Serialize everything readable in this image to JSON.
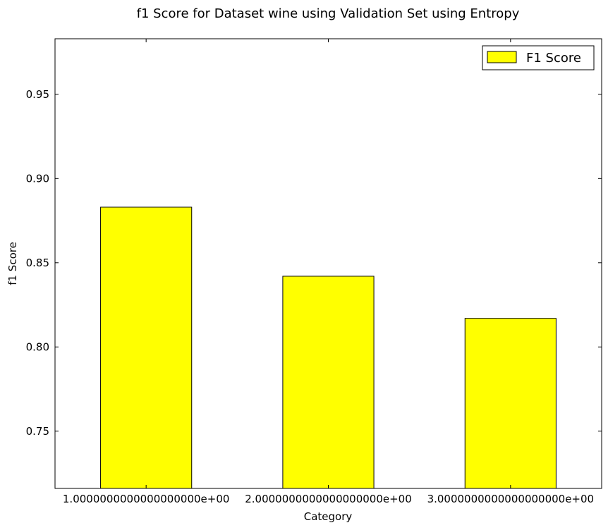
{
  "chart_data": {
    "type": "bar",
    "title": "f1 Score for Dataset wine using Validation Set using Entropy",
    "xlabel": "Category",
    "ylabel": "f1 Score",
    "categories": [
      "1.0000000000000000000e+00",
      "2.0000000000000000000e+00",
      "3.0000000000000000000e+00"
    ],
    "series": [
      {
        "name": "F1 Score",
        "values": [
          0.883,
          0.842,
          0.817
        ],
        "color": "#ffff00"
      }
    ],
    "ylim": [
      0.716,
      0.983
    ],
    "yticks": [
      0.75,
      0.8,
      0.85,
      0.9,
      0.95
    ],
    "ytick_labels": [
      "0.75",
      "0.80",
      "0.85",
      "0.90",
      "0.95"
    ],
    "grid": false,
    "legend_position": "top-right"
  }
}
